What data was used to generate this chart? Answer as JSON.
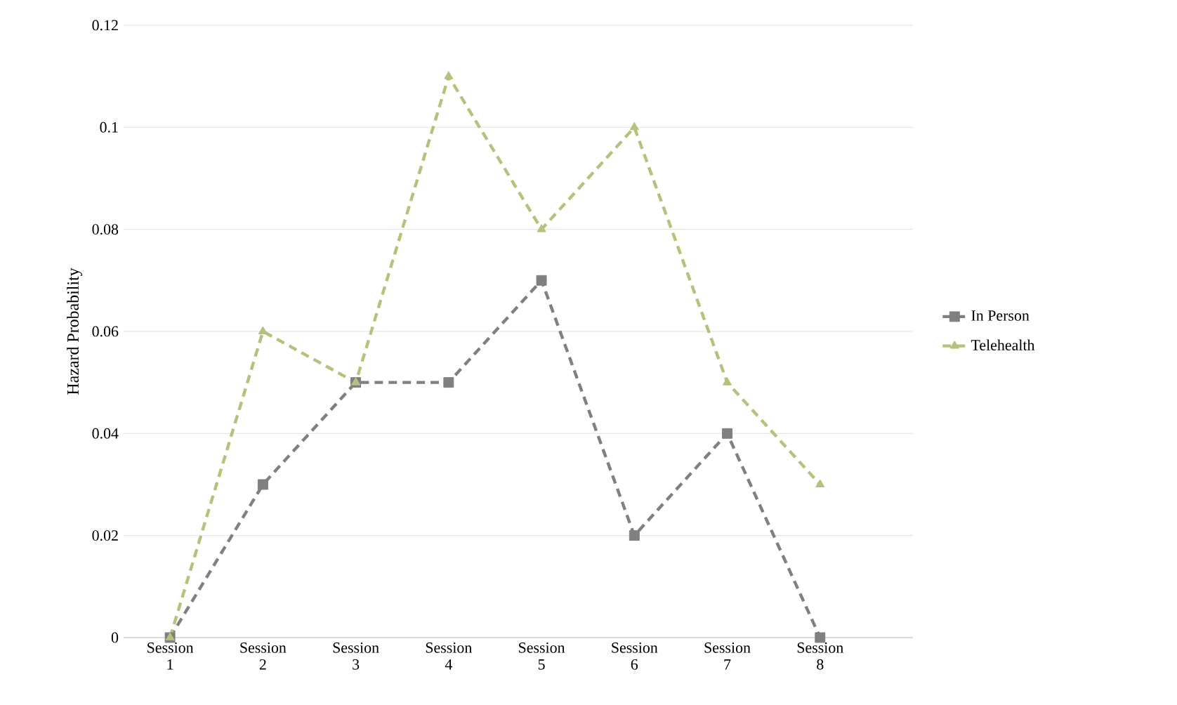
{
  "chart_data": {
    "type": "line",
    "ylabel": "Hazard Probability",
    "categories": [
      "Session 1",
      "Session 2",
      "Session 3",
      "Session 4",
      "Session 5",
      "Session 6",
      "Session 7",
      "Session 8"
    ],
    "series": [
      {
        "name": "In Person",
        "color": "#808080",
        "marker": "square",
        "values": [
          0,
          0.03,
          0.05,
          0.05,
          0.07,
          0.02,
          0.04,
          0
        ]
      },
      {
        "name": "Telehealth",
        "color": "#b5c27a",
        "marker": "triangle",
        "values": [
          0,
          0.06,
          0.05,
          0.11,
          0.08,
          0.1,
          0.05,
          0.03
        ]
      }
    ],
    "ylim": [
      0,
      0.12
    ],
    "yticks": [
      0,
      0.02,
      0.04,
      0.06,
      0.08,
      0.1,
      0.12
    ],
    "grid": "y",
    "legend": "right",
    "line_style": "dashed"
  }
}
